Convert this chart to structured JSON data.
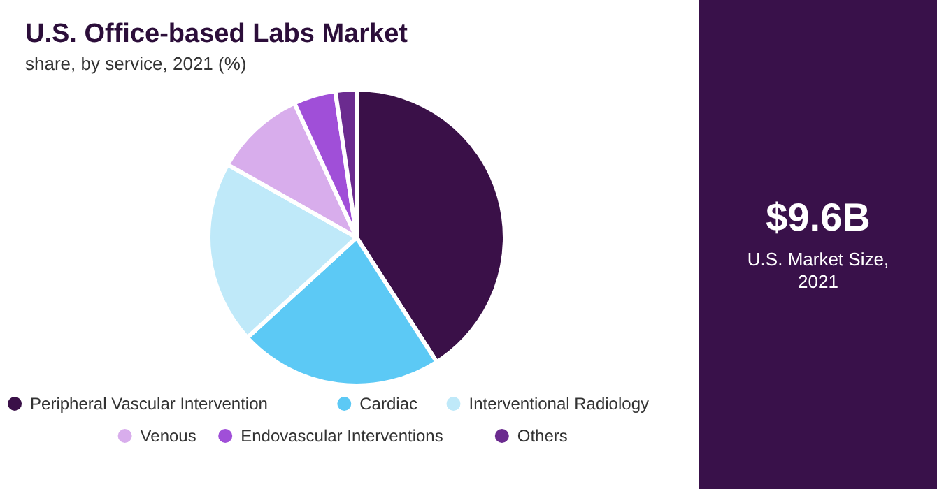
{
  "chart_data": {
    "type": "pie",
    "title": "U.S. Office-based Labs Market",
    "subtitle": "share, by service, 2021 (%)",
    "categories": [
      "Peripheral Vascular Intervention",
      "Cardiac",
      "Interventional Radiology",
      "Venous",
      "Endovascular Interventions",
      "Others"
    ],
    "values": [
      40.9,
      22.3,
      20,
      9.9,
      4.6,
      2.3
    ],
    "colors": [
      "#3a1048",
      "#5cc9f5",
      "#bfe9f9",
      "#d8adec",
      "#a04fd8",
      "#6b2b8f"
    ],
    "legend": "bottom",
    "annotations": [
      "$9.6B",
      "U.S. Market Size, 2021"
    ]
  }
}
